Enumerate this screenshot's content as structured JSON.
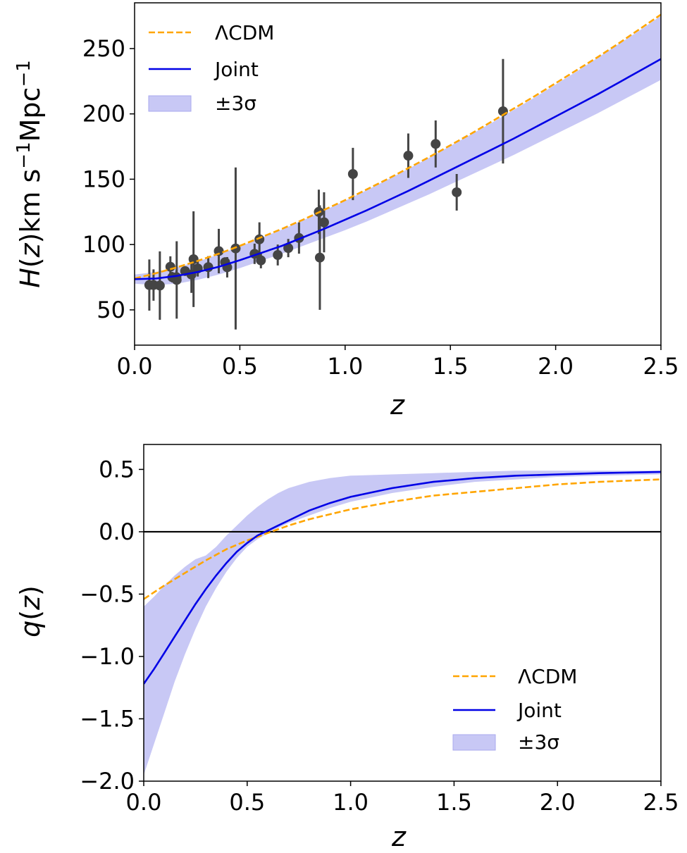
{
  "colors": {
    "lcdm": "#ffa500",
    "joint": "#0000e6",
    "band_fill": "#c8c8f5",
    "band_edge": "#aaaaee",
    "data_points": "#444444",
    "zero_line": "#000000"
  },
  "chart_data": [
    {
      "type": "line",
      "id": "hz",
      "xlabel": "z",
      "ylabel": "H(z) km s⁻¹Mpc⁻¹",
      "xlim": [
        0.0,
        2.5
      ],
      "ylim": [
        23,
        285
      ],
      "xticks": [
        0.0,
        0.5,
        1.0,
        1.5,
        2.0,
        2.5
      ],
      "xtick_labels": [
        "0.0",
        "0.5",
        "1.0",
        "1.5",
        "2.0",
        "2.5"
      ],
      "yticks": [
        50,
        100,
        150,
        200,
        250
      ],
      "ytick_labels": [
        "50",
        "100",
        "150",
        "200",
        "250"
      ],
      "legend": {
        "position": "upper-left",
        "entries": [
          "ΛCDM",
          "Joint",
          "±3σ"
        ]
      },
      "grid": false,
      "series": [
        {
          "name": "ΛCDM",
          "style": "dashed",
          "x": [
            0.0,
            0.1,
            0.2,
            0.3,
            0.4,
            0.5,
            0.6,
            0.7,
            0.8,
            0.9,
            1.0,
            1.1,
            1.2,
            1.3,
            1.4,
            1.5,
            1.6,
            1.7,
            1.8,
            1.9,
            2.0,
            2.1,
            2.2,
            2.3,
            2.4,
            2.5
          ],
          "y": [
            74,
            78,
            82.5,
            87.5,
            93,
            99,
            105.5,
            112,
            119,
            126.5,
            134,
            142,
            150,
            158.5,
            167,
            176,
            185,
            194.5,
            204,
            213.5,
            223.5,
            233.5,
            243.5,
            254,
            265,
            276
          ]
        },
        {
          "name": "Joint",
          "style": "solid",
          "x": [
            0.0,
            0.1,
            0.2,
            0.3,
            0.4,
            0.5,
            0.6,
            0.7,
            0.8,
            0.9,
            1.0,
            1.1,
            1.2,
            1.3,
            1.4,
            1.5,
            1.6,
            1.7,
            1.8,
            1.9,
            2.0,
            2.1,
            2.2,
            2.3,
            2.4,
            2.5
          ],
          "y": [
            73.5,
            74,
            76,
            79,
            83,
            88,
            93.5,
            99,
            105.5,
            112,
            119,
            126,
            133.5,
            141,
            149,
            157,
            165,
            173,
            181,
            189.5,
            198,
            206.5,
            215,
            224,
            233,
            242
          ]
        }
      ],
      "band": {
        "name": "±3σ",
        "x": [
          0.0,
          0.1,
          0.2,
          0.3,
          0.4,
          0.5,
          0.6,
          0.7,
          0.8,
          0.9,
          1.0,
          1.1,
          1.2,
          1.3,
          1.4,
          1.5,
          1.6,
          1.7,
          1.8,
          1.9,
          2.0,
          2.1,
          2.2,
          2.3,
          2.4,
          2.5
        ],
        "lower": [
          70,
          69,
          70,
          73,
          77,
          82,
          87.5,
          93,
          99,
          105,
          111,
          117.5,
          124.5,
          131.5,
          138.5,
          146,
          153.5,
          161,
          168.5,
          176.5,
          184.5,
          192.5,
          200.5,
          209,
          217.5,
          226
        ],
        "upper": [
          77,
          79,
          82.5,
          87,
          92.5,
          98.5,
          105,
          111.5,
          118.5,
          126,
          133.5,
          141.5,
          149.5,
          158,
          166.5,
          175.5,
          184.5,
          193.5,
          203,
          212.5,
          222.5,
          232.5,
          243,
          253.5,
          264,
          275
        ]
      },
      "points": [
        {
          "x": 0.07,
          "y": 69,
          "err": 19.6
        },
        {
          "x": 0.09,
          "y": 69,
          "err": 12
        },
        {
          "x": 0.12,
          "y": 68.6,
          "err": 26.2
        },
        {
          "x": 0.17,
          "y": 83,
          "err": 8
        },
        {
          "x": 0.179,
          "y": 75,
          "err": 4
        },
        {
          "x": 0.199,
          "y": 75,
          "err": 5
        },
        {
          "x": 0.2,
          "y": 72.9,
          "err": 29.6
        },
        {
          "x": 0.24,
          "y": 79.7,
          "err": 2.7
        },
        {
          "x": 0.27,
          "y": 77,
          "err": 14
        },
        {
          "x": 0.28,
          "y": 88.8,
          "err": 36.6
        },
        {
          "x": 0.3,
          "y": 81.7,
          "err": 6.2
        },
        {
          "x": 0.35,
          "y": 82.7,
          "err": 8.4
        },
        {
          "x": 0.4,
          "y": 95,
          "err": 17
        },
        {
          "x": 0.43,
          "y": 86.5,
          "err": 3.7
        },
        {
          "x": 0.44,
          "y": 82.6,
          "err": 7.8
        },
        {
          "x": 0.48,
          "y": 97,
          "err": 62
        },
        {
          "x": 0.57,
          "y": 92.9,
          "err": 7.8
        },
        {
          "x": 0.593,
          "y": 104,
          "err": 13
        },
        {
          "x": 0.6,
          "y": 87.9,
          "err": 6.1
        },
        {
          "x": 0.68,
          "y": 92,
          "err": 8
        },
        {
          "x": 0.73,
          "y": 97.3,
          "err": 7
        },
        {
          "x": 0.781,
          "y": 105,
          "err": 12
        },
        {
          "x": 0.875,
          "y": 125,
          "err": 17
        },
        {
          "x": 0.88,
          "y": 90,
          "err": 40
        },
        {
          "x": 0.9,
          "y": 117,
          "err": 23
        },
        {
          "x": 1.037,
          "y": 154,
          "err": 20
        },
        {
          "x": 1.3,
          "y": 168,
          "err": 17
        },
        {
          "x": 1.43,
          "y": 177,
          "err": 18
        },
        {
          "x": 1.53,
          "y": 140,
          "err": 14
        },
        {
          "x": 1.75,
          "y": 202,
          "err": 40
        }
      ]
    },
    {
      "type": "line",
      "id": "qz",
      "xlabel": "z",
      "ylabel": "q(z)",
      "xlim": [
        0.0,
        2.5
      ],
      "ylim": [
        -2.0,
        0.7
      ],
      "xticks": [
        0.0,
        0.5,
        1.0,
        1.5,
        2.0,
        2.5
      ],
      "xtick_labels": [
        "0.0",
        "0.5",
        "1.0",
        "1.5",
        "2.0",
        "2.5"
      ],
      "yticks": [
        -2.0,
        -1.5,
        -1.0,
        -0.5,
        0.0,
        0.5
      ],
      "ytick_labels": [
        "−2.0",
        "−1.5",
        "−1.0",
        "−0.5",
        "0.0",
        "0.5"
      ],
      "legend": {
        "position": "lower-right",
        "entries": [
          "ΛCDM",
          "Joint",
          "±3σ"
        ]
      },
      "grid": false,
      "hline": 0.0,
      "series": [
        {
          "name": "ΛCDM",
          "style": "dashed",
          "x": [
            0.0,
            0.1,
            0.2,
            0.3,
            0.4,
            0.5,
            0.6,
            0.7,
            0.8,
            0.9,
            1.0,
            1.2,
            1.4,
            1.6,
            1.8,
            2.0,
            2.2,
            2.5
          ],
          "y": [
            -0.54,
            -0.43,
            -0.33,
            -0.23,
            -0.14,
            -0.07,
            -0.01,
            0.05,
            0.1,
            0.14,
            0.18,
            0.24,
            0.29,
            0.32,
            0.35,
            0.38,
            0.4,
            0.42
          ]
        },
        {
          "name": "Joint",
          "style": "solid",
          "x": [
            0.0,
            0.05,
            0.1,
            0.15,
            0.2,
            0.25,
            0.3,
            0.35,
            0.4,
            0.45,
            0.5,
            0.55,
            0.6,
            0.65,
            0.7,
            0.8,
            0.9,
            1.0,
            1.2,
            1.4,
            1.6,
            1.8,
            2.0,
            2.2,
            2.5
          ],
          "y": [
            -1.22,
            -1.1,
            -0.97,
            -0.84,
            -0.71,
            -0.58,
            -0.46,
            -0.35,
            -0.25,
            -0.16,
            -0.09,
            -0.03,
            0.01,
            0.05,
            0.09,
            0.17,
            0.23,
            0.28,
            0.35,
            0.4,
            0.43,
            0.45,
            0.46,
            0.47,
            0.48
          ]
        }
      ],
      "band": {
        "name": "±3σ",
        "x": [
          0.0,
          0.05,
          0.1,
          0.15,
          0.2,
          0.25,
          0.3,
          0.35,
          0.4,
          0.45,
          0.5,
          0.55,
          0.6,
          0.65,
          0.7,
          0.8,
          0.9,
          1.0,
          1.2,
          1.4,
          1.6,
          1.8,
          2.0,
          2.2,
          2.5
        ],
        "lower": [
          -1.95,
          -1.7,
          -1.45,
          -1.2,
          -0.98,
          -0.78,
          -0.6,
          -0.45,
          -0.32,
          -0.21,
          -0.12,
          -0.06,
          -0.01,
          0.03,
          0.07,
          0.13,
          0.19,
          0.24,
          0.31,
          0.36,
          0.4,
          0.42,
          0.44,
          0.45,
          0.46
        ],
        "upper": [
          -0.6,
          -0.52,
          -0.43,
          -0.35,
          -0.28,
          -0.22,
          -0.19,
          -0.12,
          -0.03,
          0.05,
          0.13,
          0.2,
          0.26,
          0.31,
          0.35,
          0.4,
          0.43,
          0.45,
          0.46,
          0.47,
          0.48,
          0.49,
          0.49,
          0.49,
          0.49
        ]
      }
    }
  ]
}
